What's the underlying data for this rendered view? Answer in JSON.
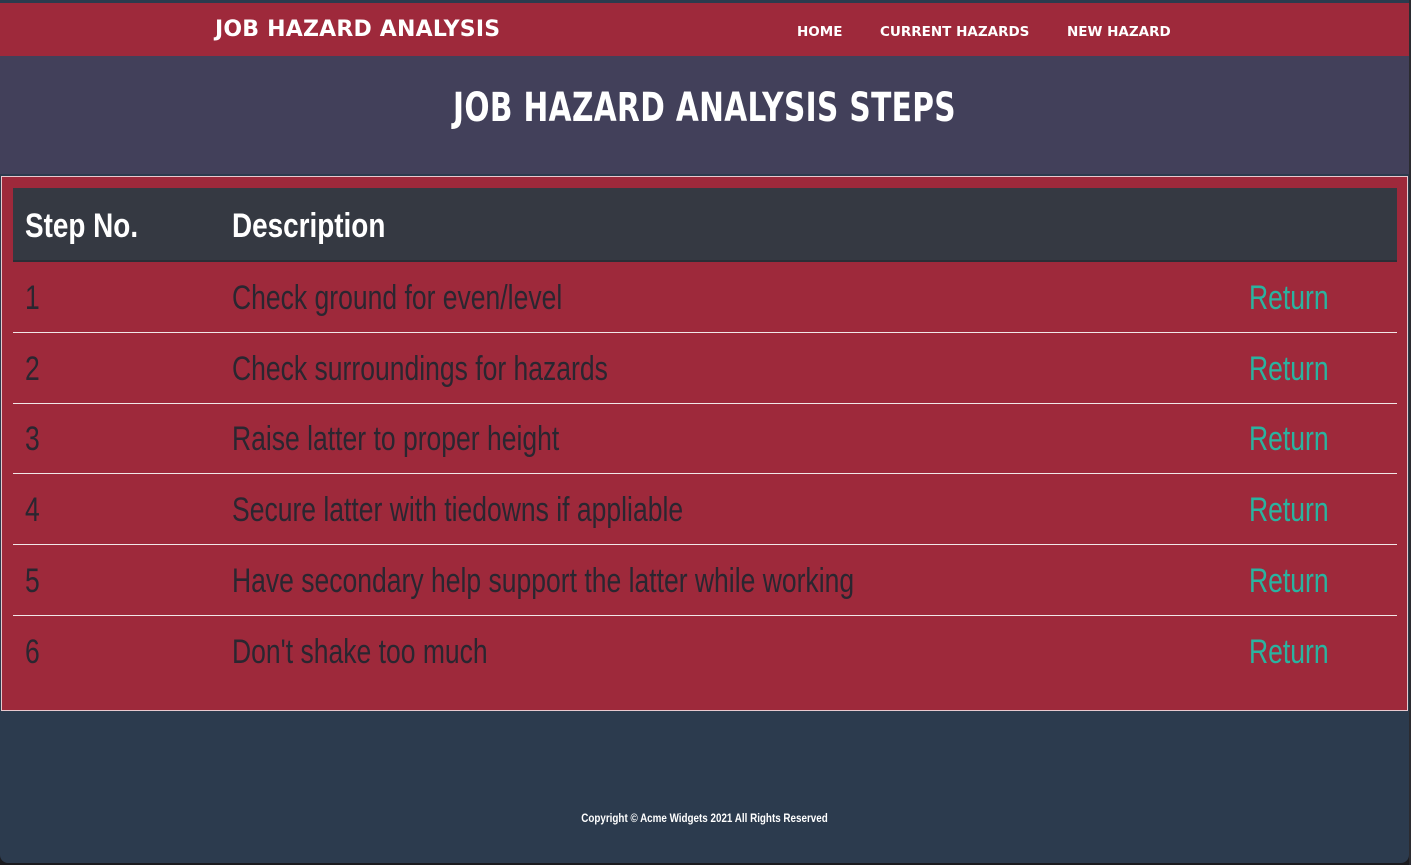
{
  "header": {
    "brand": "JOB HAZARD ANALYSIS",
    "nav": [
      {
        "label": "HOME"
      },
      {
        "label": "CURRENT HAZARDS"
      },
      {
        "label": "NEW HAZARD"
      }
    ]
  },
  "hero": {
    "title": "JOB HAZARD ANALYSIS STEPS"
  },
  "table": {
    "columns": [
      "Step No.",
      "Description"
    ],
    "rows": [
      {
        "step": "1",
        "description": "Check ground for even/level",
        "action": "Return"
      },
      {
        "step": "2",
        "description": "Check surroundings for hazards",
        "action": "Return"
      },
      {
        "step": "3",
        "description": "Raise latter to proper height",
        "action": "Return"
      },
      {
        "step": "4",
        "description": "Secure latter with tiedowns if appliable",
        "action": "Return"
      },
      {
        "step": "5",
        "description": "Have secondary help support the latter while working",
        "action": "Return"
      },
      {
        "step": "6",
        "description": "Don't shake too much",
        "action": "Return"
      }
    ]
  },
  "footer": {
    "copyright": "Copyright © Acme Widgets 2021 All Rights Reserved"
  },
  "colors": {
    "nav_bg": "#9e293b",
    "hero_bg": "#42405a",
    "table_header_bg": "#353942",
    "link_accent": "#2ab3a0",
    "footer_bg": "#2c3b4e"
  }
}
